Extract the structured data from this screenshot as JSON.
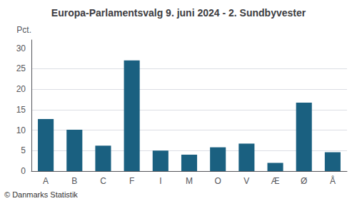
{
  "chart_data": {
    "type": "bar",
    "title": "Europa-Parlamentsvalg 9. juni 2024 - 2. Sundbyvester",
    "ylabel": "Pct.",
    "annotations": [
      "© Danmarks Statistik"
    ],
    "categories": [
      "A",
      "B",
      "C",
      "F",
      "I",
      "M",
      "O",
      "V",
      "Æ",
      "Ø",
      "Å"
    ],
    "values": [
      12.7,
      10.1,
      6.2,
      27.0,
      5.0,
      4.0,
      5.8,
      6.7,
      2.0,
      16.7,
      4.6
    ],
    "color": "#1a6080",
    "ylim": [
      0,
      32
    ],
    "yticks": [
      0,
      5,
      10,
      15,
      20,
      25,
      30
    ],
    "grid": true
  }
}
